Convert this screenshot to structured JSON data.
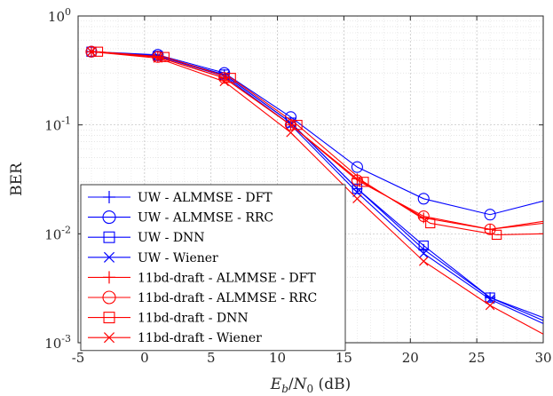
{
  "chart_data": {
    "type": "line",
    "xlabel": "E_b/N_0 (dB)",
    "ylabel": "BER",
    "xlim": [
      -5,
      30
    ],
    "ylim": [
      0.001,
      1
    ],
    "yscale": "log",
    "grid": true,
    "minor_grid": true,
    "legend_position": "bottom-left",
    "x_ticks": [
      "-5",
      "0",
      "5",
      "10",
      "15",
      "20",
      "25",
      "30"
    ],
    "y_ticks": [
      {
        "value": 1,
        "base": "10",
        "exp": "0"
      },
      {
        "value": 0.1,
        "base": "10",
        "exp": "-1"
      },
      {
        "value": 0.01,
        "base": "10",
        "exp": "-2"
      },
      {
        "value": 0.001,
        "base": "10",
        "exp": "-3"
      }
    ],
    "series": [
      {
        "name": "UW - ALMMSE - DFT",
        "color": "#0000ff",
        "marker": "plus",
        "x": [
          -4,
          1,
          6,
          11,
          16,
          21,
          26,
          30
        ],
        "y": [
          0.47,
          0.43,
          0.29,
          0.105,
          0.026,
          0.0072,
          0.0026,
          0.0017
        ]
      },
      {
        "name": "UW - ALMMSE - RRC",
        "color": "#0000ff",
        "marker": "circle",
        "x": [
          -4,
          1,
          6,
          11,
          16,
          21,
          26,
          30
        ],
        "y": [
          0.47,
          0.44,
          0.3,
          0.118,
          0.041,
          0.021,
          0.015,
          0.02
        ]
      },
      {
        "name": "UW - DNN",
        "color": "#0000ff",
        "marker": "square",
        "x": [
          -4,
          1,
          6,
          11,
          16,
          21,
          26,
          30
        ],
        "y": [
          0.47,
          0.43,
          0.29,
          0.105,
          0.026,
          0.0078,
          0.0026,
          0.0016
        ]
      },
      {
        "name": "UW - Wiener",
        "color": "#0000ff",
        "marker": "x",
        "x": [
          -4,
          1,
          6,
          11,
          16,
          21,
          26,
          30
        ],
        "y": [
          0.47,
          0.43,
          0.28,
          0.1,
          0.024,
          0.0066,
          0.0025,
          0.0015
        ]
      },
      {
        "name": "11bd-draft - ALMMSE - DFT",
        "color": "#ff0000",
        "marker": "plus",
        "x": [
          -4,
          1,
          6,
          11,
          16,
          21,
          26,
          30
        ],
        "y": [
          0.47,
          0.42,
          0.27,
          0.1,
          0.032,
          0.014,
          0.011,
          0.013
        ]
      },
      {
        "name": "11bd-draft - ALMMSE - RRC",
        "color": "#ff0000",
        "marker": "circle",
        "x": [
          -4,
          1,
          6,
          11,
          16,
          21,
          26,
          30
        ],
        "y": [
          0.47,
          0.42,
          0.27,
          0.1,
          0.031,
          0.0145,
          0.011,
          0.0125
        ]
      },
      {
        "name": "11bd-draft - DNN",
        "color": "#ff0000",
        "marker": "square",
        "x": [
          -3.5,
          1.5,
          6.5,
          11.5,
          16.5,
          21.5,
          26.5,
          30
        ],
        "y": [
          0.47,
          0.42,
          0.27,
          0.1,
          0.03,
          0.0125,
          0.0098,
          0.01
        ]
      },
      {
        "name": "11bd-draft - Wiener",
        "color": "#ff0000",
        "marker": "x",
        "x": [
          -4,
          1,
          6,
          11,
          16,
          21,
          26,
          30
        ],
        "y": [
          0.47,
          0.41,
          0.25,
          0.085,
          0.021,
          0.0056,
          0.0022,
          0.0012
        ]
      }
    ]
  }
}
